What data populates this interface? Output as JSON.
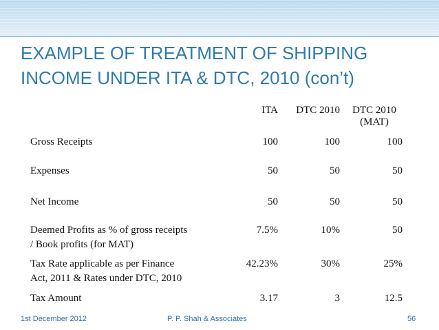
{
  "header": {
    "title": [
      "EXAMPLE OF TREATMENT OF SHIPPING",
      "INCOME UNDER ITA & DTC, 2010 (con’t)"
    ]
  },
  "table": {
    "columns": [
      [
        "ITA"
      ],
      [
        "DTC 2010"
      ],
      [
        "DTC 2010",
        "(MAT)"
      ]
    ],
    "rows": [
      {
        "label": [
          "Gross Receipts"
        ],
        "values": [
          "100",
          "100",
          "100"
        ]
      },
      {
        "label": [
          "Expenses"
        ],
        "values": [
          "50",
          "50",
          "50"
        ]
      },
      {
        "label": [
          "Net Income"
        ],
        "values": [
          "50",
          "50",
          "50"
        ]
      },
      {
        "label": [
          "Deemed Profits as % of gross receipts",
          "/ Book profits (for MAT)"
        ],
        "values": [
          "7.5%",
          "10%",
          "50"
        ]
      },
      {
        "label": [
          "Tax Rate applicable as per Finance",
          "Act, 2011 & Rates under DTC, 2010"
        ],
        "values": [
          "42.23%",
          "30%",
          "25%"
        ]
      },
      {
        "label": [
          "Tax Amount"
        ],
        "values": [
          "3.17",
          "3",
          "12.5"
        ]
      }
    ]
  },
  "footer": {
    "date": "1st December 2012",
    "author": "P. P. Shah & Associates",
    "page": "56"
  }
}
